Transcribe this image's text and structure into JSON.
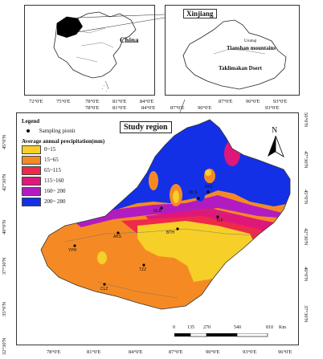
{
  "colors": {
    "p0_15": "#f6cf28",
    "p15_65": "#f58a25",
    "p65_115": "#ed2a4a",
    "p115_160": "#e0177a",
    "p160_200": "#b21bc2",
    "p200_280": "#1430e6"
  },
  "inset_china": {
    "label": "China",
    "longitudes": [
      "72°0'E",
      "75°0'E",
      "78°0'E",
      "81°0'E",
      "84°0'E"
    ]
  },
  "inset_xinjiang": {
    "title": "Xinjiang",
    "tianshan_small": "Urumqi",
    "tianshan_label": "Tianshan mountains",
    "taklimakan_label": "Taklimakan Dsert",
    "longitudes": [
      "87°0'E",
      "90°0'E",
      "93°0'E"
    ]
  },
  "study_region_label": "Study region",
  "map": {
    "longitudes_top": [
      "78°0'E",
      "81°0'E",
      "84°0'E",
      "87°0'E",
      "90°0'E",
      "93°0'E"
    ],
    "longitudes_bottom": [
      "78°0'E",
      "81°0'E",
      "84°0'E",
      "87°0'E",
      "90°0'E",
      "93°0'E",
      "96°0'E"
    ],
    "latitudes_left": [
      "45°0'N",
      "42°30'N",
      "40°0'N",
      "37°30'N",
      "35°0'N",
      "32°30'N"
    ],
    "latitudes_right": [
      "50°0'N",
      "47°30'N",
      "45°0'N",
      "42°30'N",
      "40°0'N",
      "37°30'N"
    ],
    "north_label": "N"
  },
  "legend": {
    "title": "Legend",
    "sampling_point": "Sampling pionit",
    "precip_title": "Average annual precipitation(mm)",
    "classes": [
      "0~15",
      "15~65",
      "65~115",
      "115~160",
      "160~ 200",
      "200~ 280"
    ]
  },
  "sites": [
    "YPH",
    "AKS",
    "TZZ",
    "CLZ",
    "BTH",
    "TLF",
    "FKZ",
    "MLS",
    "GLB"
  ],
  "scale_bar": {
    "ticks": [
      "0",
      "135",
      "270",
      "540",
      "810"
    ],
    "unit": "Km"
  }
}
